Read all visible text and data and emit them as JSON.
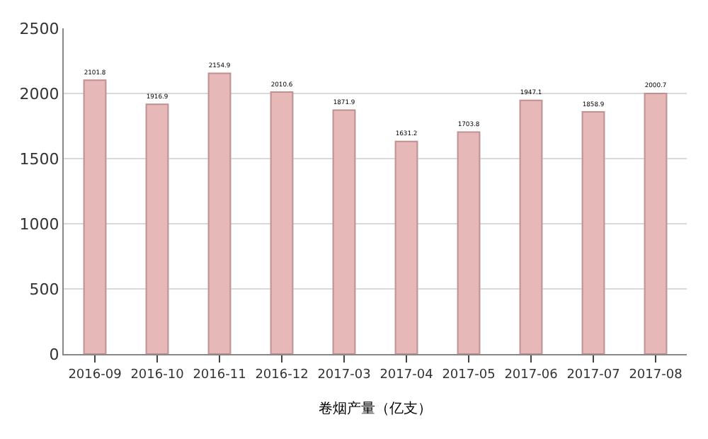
{
  "chart_data": {
    "type": "bar",
    "xlabel": "卷烟产量（亿支）",
    "categories": [
      "2016-09",
      "2016-10",
      "2016-11",
      "2016-12",
      "2017-03",
      "2017-04",
      "2017-05",
      "2017-06",
      "2017-07",
      "2017-08"
    ],
    "values": [
      2101.8,
      1916.9,
      2154.9,
      2010.6,
      1871.9,
      1631.2,
      1703.8,
      1947.1,
      1858.9,
      2000.7
    ],
    "color": "#e6b8b7",
    "ylim": [
      0,
      2500
    ],
    "yticks": [
      0,
      500,
      1000,
      1500,
      2000,
      2500
    ],
    "grid": "y",
    "data_labels": true
  }
}
